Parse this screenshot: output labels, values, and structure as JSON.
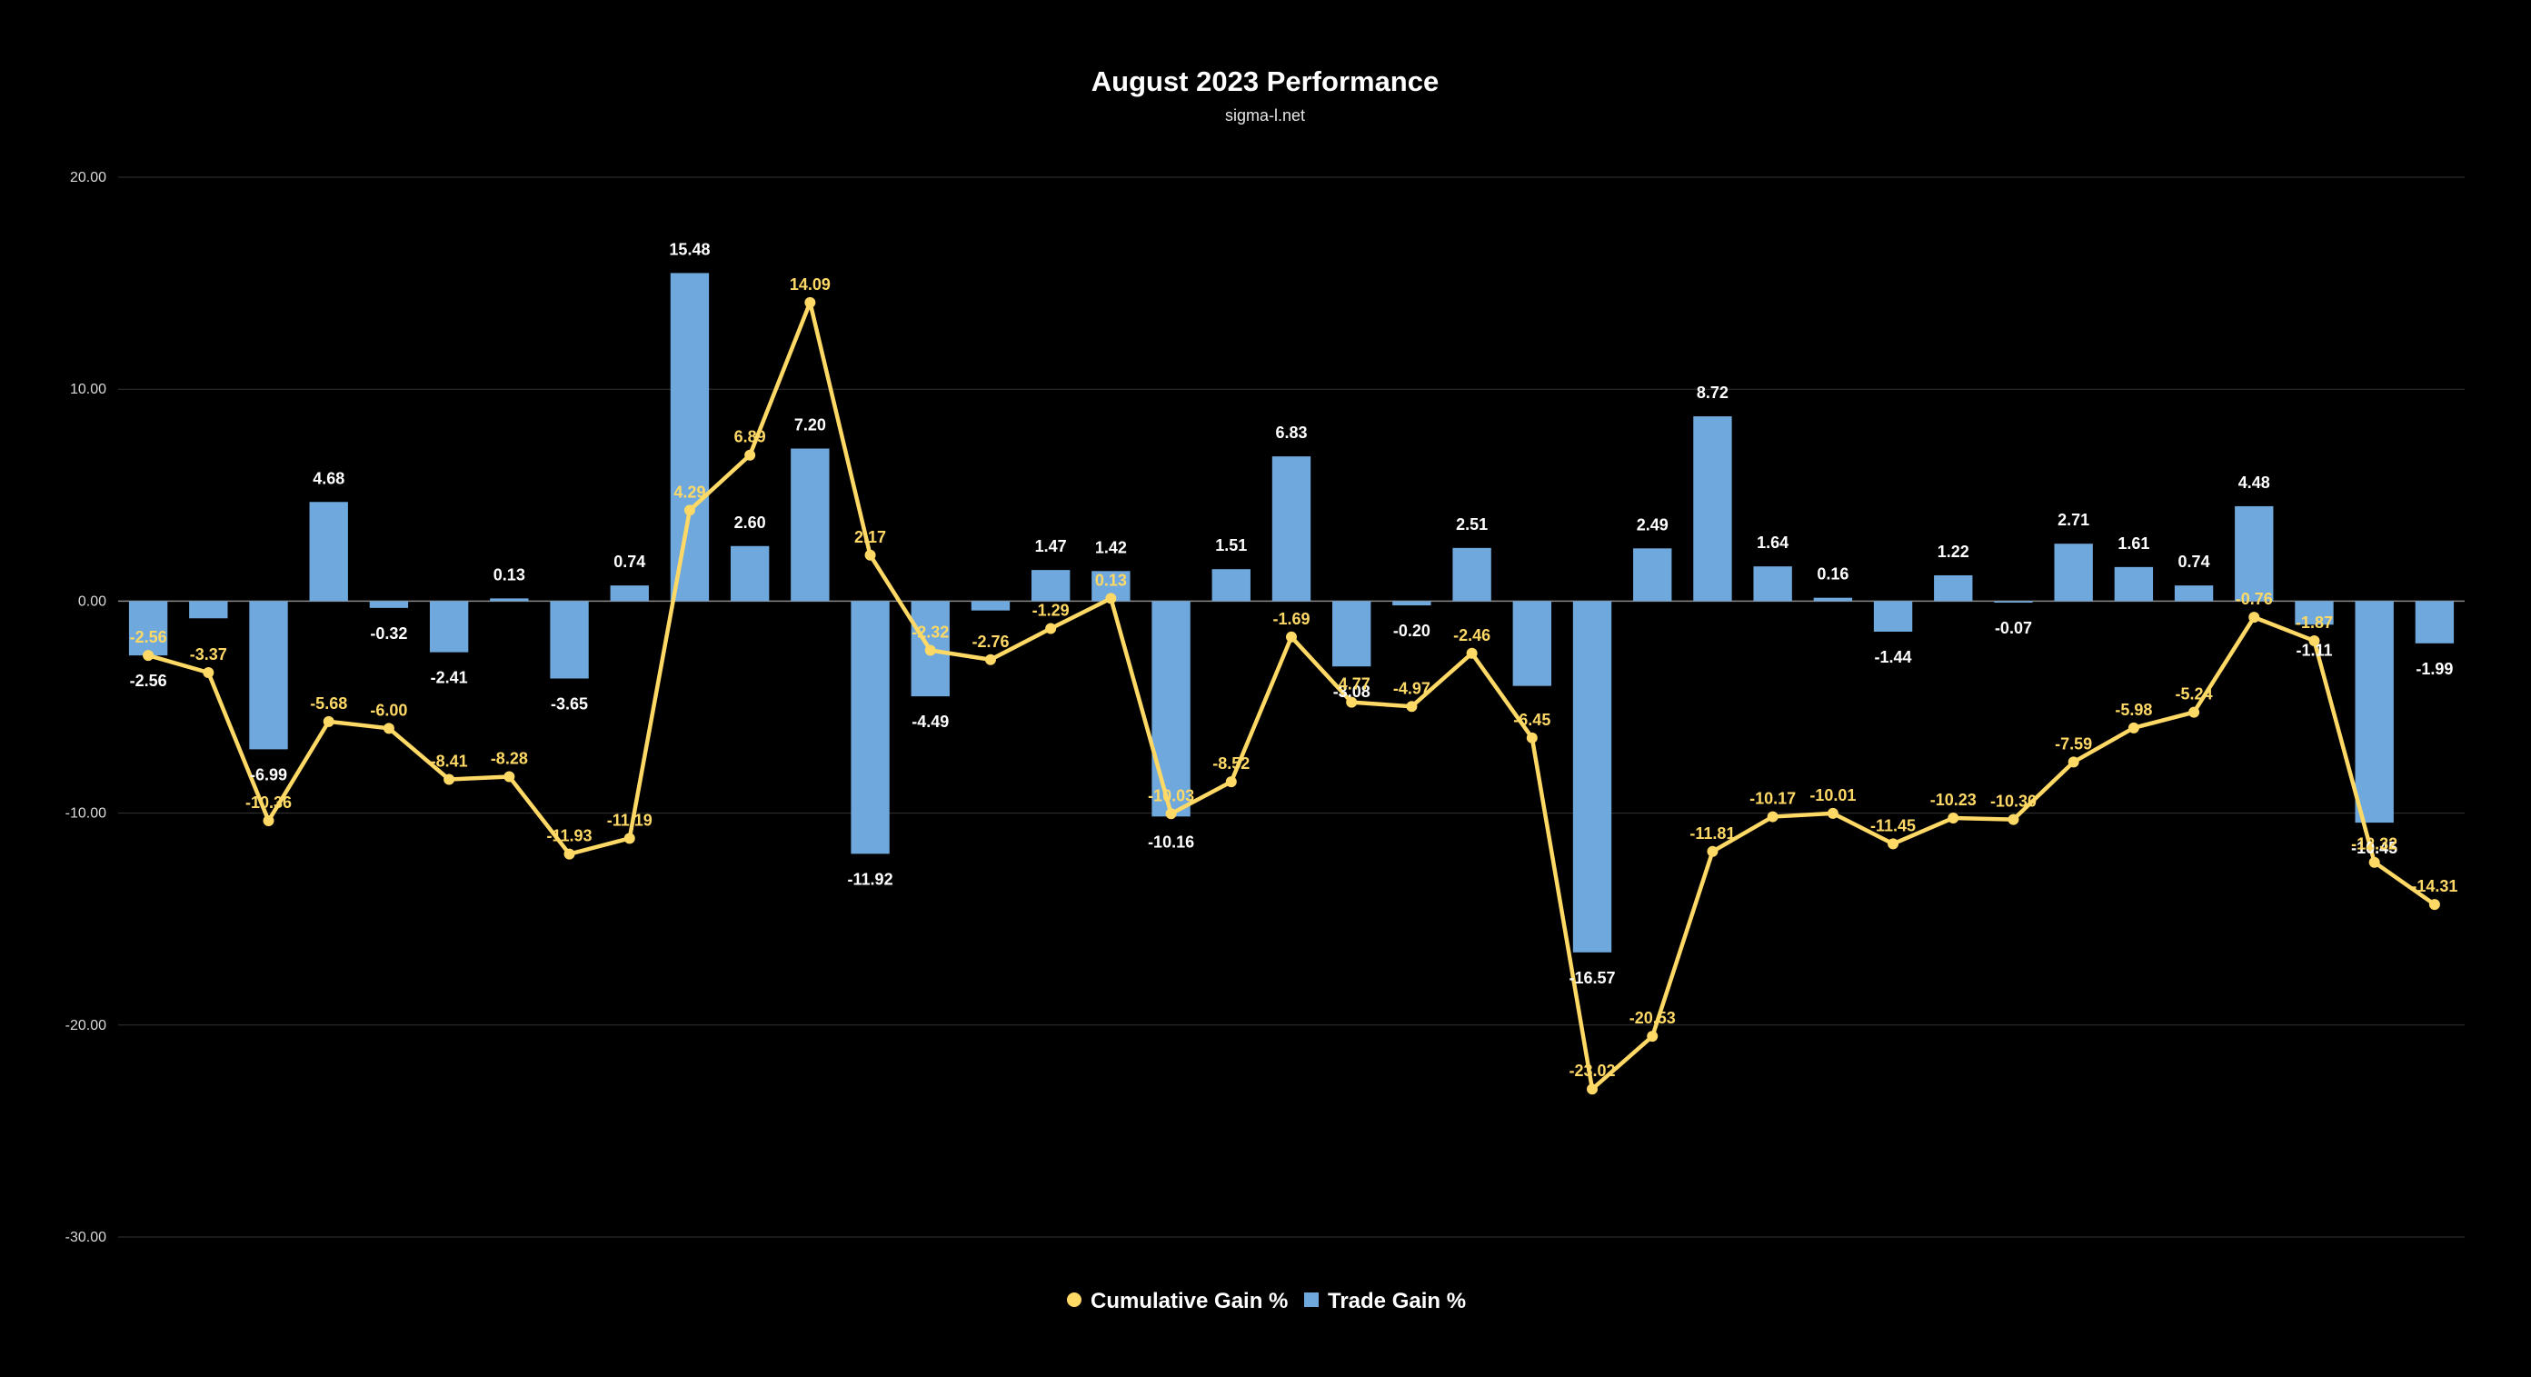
{
  "chart_data": {
    "type": "bar",
    "title": "August 2023 Performance",
    "subtitle": "sigma-l.net",
    "xlabel": "",
    "ylabel": "",
    "ylim": [
      -30,
      20
    ],
    "yticks": [
      20,
      10,
      0,
      -10,
      -20,
      -30
    ],
    "ytick_labels": [
      "20.00",
      "10.00",
      "0.00",
      "-10.00",
      "-20.00",
      "-30.00"
    ],
    "grid": true,
    "legend_position": "bottom",
    "series": [
      {
        "name": "Cumulative Gain %",
        "type": "line",
        "color": "#ffd966",
        "values": [
          -2.56,
          -3.37,
          -10.36,
          -5.68,
          -6.0,
          -8.41,
          -8.28,
          -11.93,
          -11.19,
          4.29,
          6.89,
          14.09,
          2.17,
          -2.32,
          -2.76,
          -1.29,
          0.13,
          -10.03,
          -8.52,
          -1.69,
          -4.77,
          -4.97,
          -2.46,
          -6.45,
          -23.02,
          -20.53,
          -11.81,
          -10.17,
          -10.01,
          -11.45,
          -10.23,
          -10.3,
          -7.59,
          -5.98,
          -5.24,
          -0.76,
          -1.87,
          -12.32,
          -14.31
        ],
        "labels": [
          "-2.56",
          "-3.37",
          "-10.36",
          "-5.68",
          "-6.00",
          "-8.41",
          "-8.28",
          "-11.93",
          "-11.19",
          "4.29",
          "6.89",
          "14.09",
          "2.17",
          "-2.32",
          "-2.76",
          "-1.29",
          "0.13",
          "-10.03",
          "-8.52",
          "-1.69",
          "-4.77",
          "-4.97",
          "-2.46",
          "-6.45",
          "-23.02",
          "-20.53",
          "-11.81",
          "-10.17",
          "-10.01",
          "-11.45",
          "-10.23",
          "-10.30",
          "-7.59",
          "-5.98",
          "-5.24",
          "-0.76",
          "-1.87",
          "-12.32",
          "-14.31"
        ]
      },
      {
        "name": "Trade Gain %",
        "type": "bar",
        "color": "#6fa8dc",
        "values": [
          -2.56,
          -0.81,
          -6.99,
          4.68,
          -0.32,
          -2.41,
          0.13,
          -3.65,
          0.74,
          15.48,
          2.6,
          7.2,
          -11.92,
          -4.49,
          -0.44,
          1.47,
          1.42,
          -10.16,
          1.51,
          6.83,
          -3.08,
          -0.2,
          2.51,
          -4.0,
          -16.57,
          2.49,
          8.72,
          1.64,
          0.16,
          -1.44,
          1.22,
          -0.07,
          2.71,
          1.61,
          0.74,
          4.48,
          -1.11,
          -10.45,
          -1.99
        ],
        "labels": [
          "-2.56",
          "",
          "-6.99",
          "4.68",
          "-0.32",
          "-2.41",
          "0.13",
          "-3.65",
          "0.74",
          "15.48",
          "2.60",
          "7.20",
          "-11.92",
          "-4.49",
          "",
          "1.47",
          "1.42",
          "-10.16",
          "1.51",
          "6.83",
          "-3.08",
          "-0.20",
          "2.51",
          "",
          "-16.57",
          "2.49",
          "8.72",
          "1.64",
          "0.16",
          "-1.44",
          "1.22",
          "-0.07",
          "2.71",
          "1.61",
          "0.74",
          "4.48",
          "-1.11",
          "-10.45",
          "-1.99"
        ]
      }
    ]
  },
  "style": {
    "background": "#000000",
    "gridline_color": "#333333",
    "zero_line_color": "#888888"
  }
}
